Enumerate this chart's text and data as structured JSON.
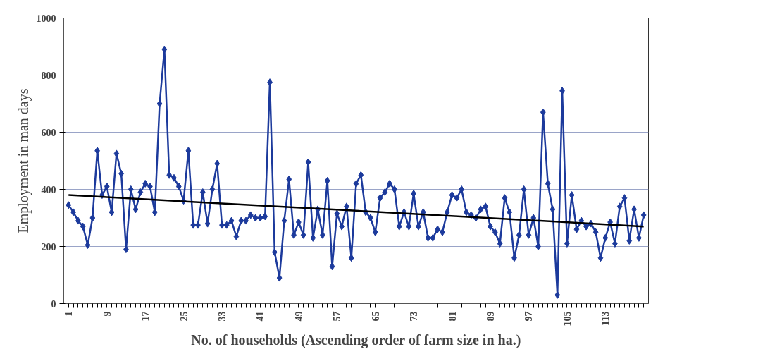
{
  "chart_data": {
    "type": "line",
    "xlabel": "No. of households (Ascending order of farm size in ha.)",
    "ylabel": "Employment in man days",
    "x": [
      1,
      2,
      3,
      4,
      5,
      6,
      7,
      8,
      9,
      10,
      11,
      12,
      13,
      14,
      15,
      16,
      17,
      18,
      19,
      20,
      21,
      22,
      23,
      24,
      25,
      26,
      27,
      28,
      29,
      30,
      31,
      32,
      33,
      34,
      35,
      36,
      37,
      38,
      39,
      40,
      41,
      42,
      43,
      44,
      45,
      46,
      47,
      48,
      49,
      50,
      51,
      52,
      53,
      54,
      55,
      56,
      57,
      58,
      59,
      60,
      61,
      62,
      63,
      64,
      65,
      66,
      67,
      68,
      69,
      70,
      71,
      72,
      73,
      74,
      75,
      76,
      77,
      78,
      79,
      80,
      81,
      82,
      83,
      84,
      85,
      86,
      87,
      88,
      89,
      90,
      91,
      92,
      93,
      94,
      95,
      96,
      97,
      98,
      99,
      100,
      101,
      102,
      103,
      104,
      105,
      106,
      107,
      108,
      109,
      110,
      111,
      112,
      113,
      114,
      115,
      116,
      117,
      118,
      119,
      120,
      121
    ],
    "series": [
      {
        "color": "#1c3a9c",
        "marker": "diamond",
        "values": [
          345,
          320,
          290,
          270,
          205,
          300,
          535,
          380,
          410,
          320,
          525,
          455,
          190,
          400,
          330,
          390,
          420,
          410,
          320,
          700,
          890,
          450,
          440,
          410,
          360,
          535,
          275,
          275,
          390,
          280,
          400,
          490,
          275,
          275,
          290,
          235,
          290,
          290,
          310,
          300,
          300,
          305,
          775,
          180,
          90,
          290,
          435,
          240,
          285,
          240,
          495,
          230,
          330,
          240,
          430,
          130,
          315,
          270,
          340,
          160,
          420,
          450,
          320,
          300,
          250,
          370,
          390,
          420,
          400,
          270,
          320,
          270,
          385,
          270,
          320,
          230,
          230,
          260,
          250,
          320,
          380,
          370,
          400,
          320,
          310,
          300,
          330,
          340,
          270,
          250,
          210,
          370,
          320,
          160,
          240,
          400,
          240,
          300,
          200,
          670,
          420,
          330,
          30,
          745,
          210,
          380,
          260,
          290,
          270,
          280,
          250,
          160,
          230,
          285,
          210,
          340,
          370,
          220,
          330,
          230,
          310
        ]
      },
      {
        "type": "line",
        "color": "#000000",
        "marker": "none",
        "x": [
          1,
          121
        ],
        "values": [
          380,
          270
        ]
      }
    ],
    "xlim": [
      0,
      122
    ],
    "xticks": [
      1,
      {
        "value": 2,
        "label": null
      },
      {
        "value": 3,
        "label": null
      },
      {
        "value": 4,
        "label": null
      },
      {
        "value": 5,
        "label": null
      },
      {
        "value": 6,
        "label": null
      },
      {
        "value": 7,
        "label": null
      },
      {
        "value": 8,
        "label": null
      },
      9,
      {
        "value": 10,
        "label": null
      },
      {
        "value": 11,
        "label": null
      },
      {
        "value": 12,
        "label": null
      },
      {
        "value": 13,
        "label": null
      },
      {
        "value": 14,
        "label": null
      },
      {
        "value": 15,
        "label": null
      },
      {
        "value": 16,
        "label": null
      },
      17,
      {
        "value": 18,
        "label": null
      },
      {
        "value": 19,
        "label": null
      },
      {
        "value": 20,
        "label": null
      },
      {
        "value": 21,
        "label": null
      },
      {
        "value": 22,
        "label": null
      },
      {
        "value": 23,
        "label": null
      },
      {
        "value": 24,
        "label": null
      },
      25,
      {
        "value": 26,
        "label": null
      },
      {
        "value": 27,
        "label": null
      },
      {
        "value": 28,
        "label": null
      },
      {
        "value": 29,
        "label": null
      },
      {
        "value": 30,
        "label": null
      },
      {
        "value": 31,
        "label": null
      },
      {
        "value": 32,
        "label": null
      },
      33,
      {
        "value": 34,
        "label": null
      },
      {
        "value": 35,
        "label": null
      },
      {
        "value": 36,
        "label": null
      },
      {
        "value": 37,
        "label": null
      },
      {
        "value": 38,
        "label": null
      },
      {
        "value": 39,
        "label": null
      },
      {
        "value": 40,
        "label": null
      },
      41,
      {
        "value": 42,
        "label": null
      },
      {
        "value": 43,
        "label": null
      },
      {
        "value": 44,
        "label": null
      },
      {
        "value": 45,
        "label": null
      },
      {
        "value": 46,
        "label": null
      },
      {
        "value": 47,
        "label": null
      },
      {
        "value": 48,
        "label": null
      },
      49,
      {
        "value": 50,
        "label": null
      },
      {
        "value": 51,
        "label": null
      },
      {
        "value": 52,
        "label": null
      },
      {
        "value": 53,
        "label": null
      },
      {
        "value": 54,
        "label": null
      },
      {
        "value": 55,
        "label": null
      },
      {
        "value": 56,
        "label": null
      },
      57,
      {
        "value": 58,
        "label": null
      },
      {
        "value": 59,
        "label": null
      },
      {
        "value": 60,
        "label": null
      },
      {
        "value": 61,
        "label": null
      },
      {
        "value": 62,
        "label": null
      },
      {
        "value": 63,
        "label": null
      },
      {
        "value": 64,
        "label": null
      },
      65,
      {
        "value": 66,
        "label": null
      },
      {
        "value": 67,
        "label": null
      },
      {
        "value": 68,
        "label": null
      },
      {
        "value": 69,
        "label": null
      },
      {
        "value": 70,
        "label": null
      },
      {
        "value": 71,
        "label": null
      },
      {
        "value": 72,
        "label": null
      },
      73,
      {
        "value": 74,
        "label": null
      },
      {
        "value": 75,
        "label": null
      },
      {
        "value": 76,
        "label": null
      },
      {
        "value": 77,
        "label": null
      },
      {
        "value": 78,
        "label": null
      },
      {
        "value": 79,
        "label": null
      },
      {
        "value": 80,
        "label": null
      },
      81,
      {
        "value": 82,
        "label": null
      },
      {
        "value": 83,
        "label": null
      },
      {
        "value": 84,
        "label": null
      },
      {
        "value": 85,
        "label": null
      },
      {
        "value": 86,
        "label": null
      },
      {
        "value": 87,
        "label": null
      },
      {
        "value": 88,
        "label": null
      },
      89,
      {
        "value": 90,
        "label": null
      },
      {
        "value": 91,
        "label": null
      },
      {
        "value": 92,
        "label": null
      },
      {
        "value": 93,
        "label": null
      },
      {
        "value": 94,
        "label": null
      },
      {
        "value": 95,
        "label": null
      },
      {
        "value": 96,
        "label": null
      },
      97,
      {
        "value": 98,
        "label": null
      },
      {
        "value": 99,
        "label": null
      },
      {
        "value": 100,
        "label": null
      },
      {
        "value": 101,
        "label": null
      },
      {
        "value": 102,
        "label": null
      },
      {
        "value": 103,
        "label": null
      },
      {
        "value": 104,
        "label": null
      },
      105,
      {
        "value": 106,
        "label": null
      },
      {
        "value": 107,
        "label": null
      },
      {
        "value": 108,
        "label": null
      },
      {
        "value": 109,
        "label": null
      },
      {
        "value": 110,
        "label": null
      },
      {
        "value": 111,
        "label": null
      },
      {
        "value": 112,
        "label": null
      },
      113,
      {
        "value": 114,
        "label": null
      },
      {
        "value": 115,
        "label": null
      },
      {
        "value": 116,
        "label": null
      },
      {
        "value": 117,
        "label": null
      },
      {
        "value": 118,
        "label": null
      },
      {
        "value": 119,
        "label": null
      },
      {
        "value": 120,
        "label": null
      },
      {
        "value": 121,
        "label": null
      }
    ],
    "ylim": [
      0,
      1000
    ],
    "yticks": [
      0,
      200,
      400,
      600,
      800,
      1000
    ],
    "grid": "y",
    "line_style": "solid"
  }
}
